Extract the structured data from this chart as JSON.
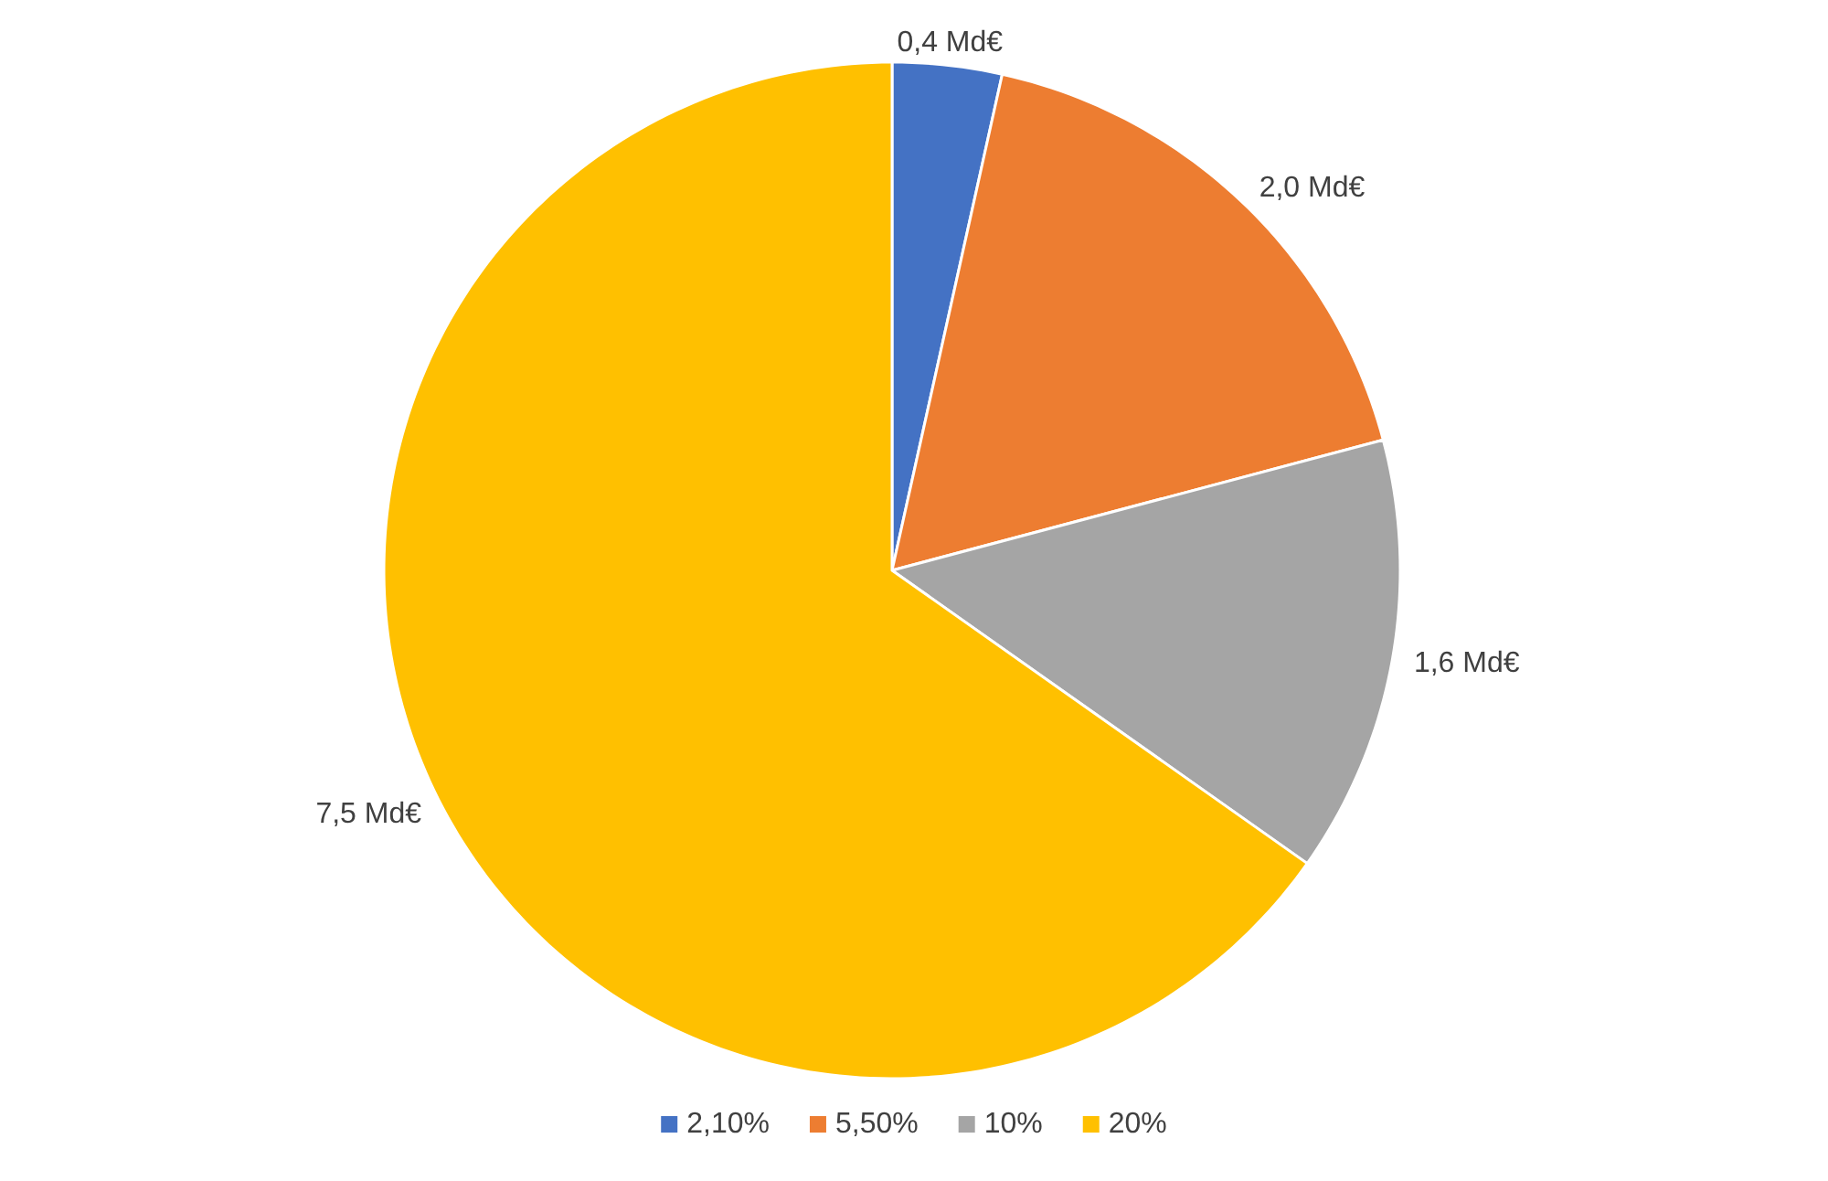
{
  "chart_data": {
    "type": "pie",
    "categories": [
      "2,10%",
      "5,50%",
      "10%",
      "20%"
    ],
    "values": [
      0.4,
      2.0,
      1.6,
      7.5
    ],
    "value_labels": [
      "0,4 Md€",
      "2,0 Md€",
      "1,6 Md€",
      "7,5 Md€"
    ],
    "colors": [
      "#4472c4",
      "#ed7d31",
      "#a5a5a5",
      "#ffc000"
    ],
    "legend": "bottom"
  }
}
